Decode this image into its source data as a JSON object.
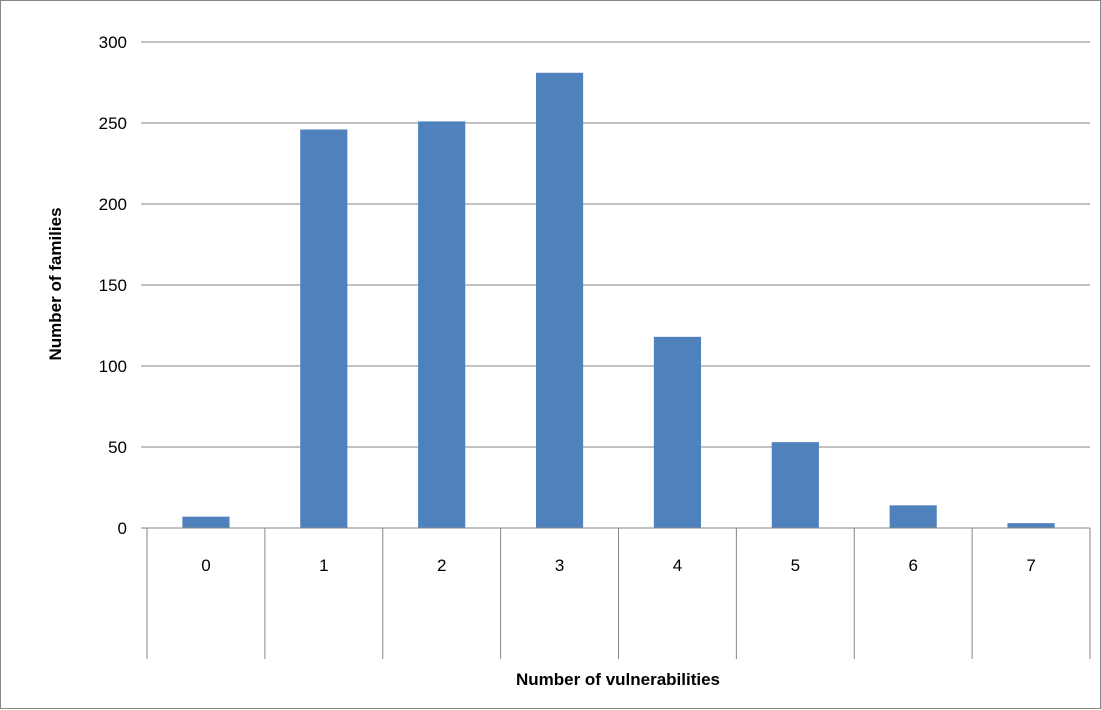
{
  "chart_data": {
    "type": "bar",
    "title": "",
    "xlabel": "Number of vulnerabilities",
    "ylabel": "Number of families",
    "categories": [
      "0",
      "1",
      "2",
      "3",
      "4",
      "5",
      "6",
      "7"
    ],
    "series": [
      {
        "values": [
          7,
          246,
          251,
          281,
          118,
          53,
          14,
          3
        ]
      }
    ],
    "ylim": [
      0,
      300
    ],
    "yticks": [
      "0",
      "50",
      "100",
      "150",
      "200",
      "250",
      "300"
    ],
    "grid": "horizontal",
    "legend": "none",
    "colors": {
      "bar": "#4f81bd",
      "grid": "#868686",
      "axis": "#868686"
    }
  }
}
